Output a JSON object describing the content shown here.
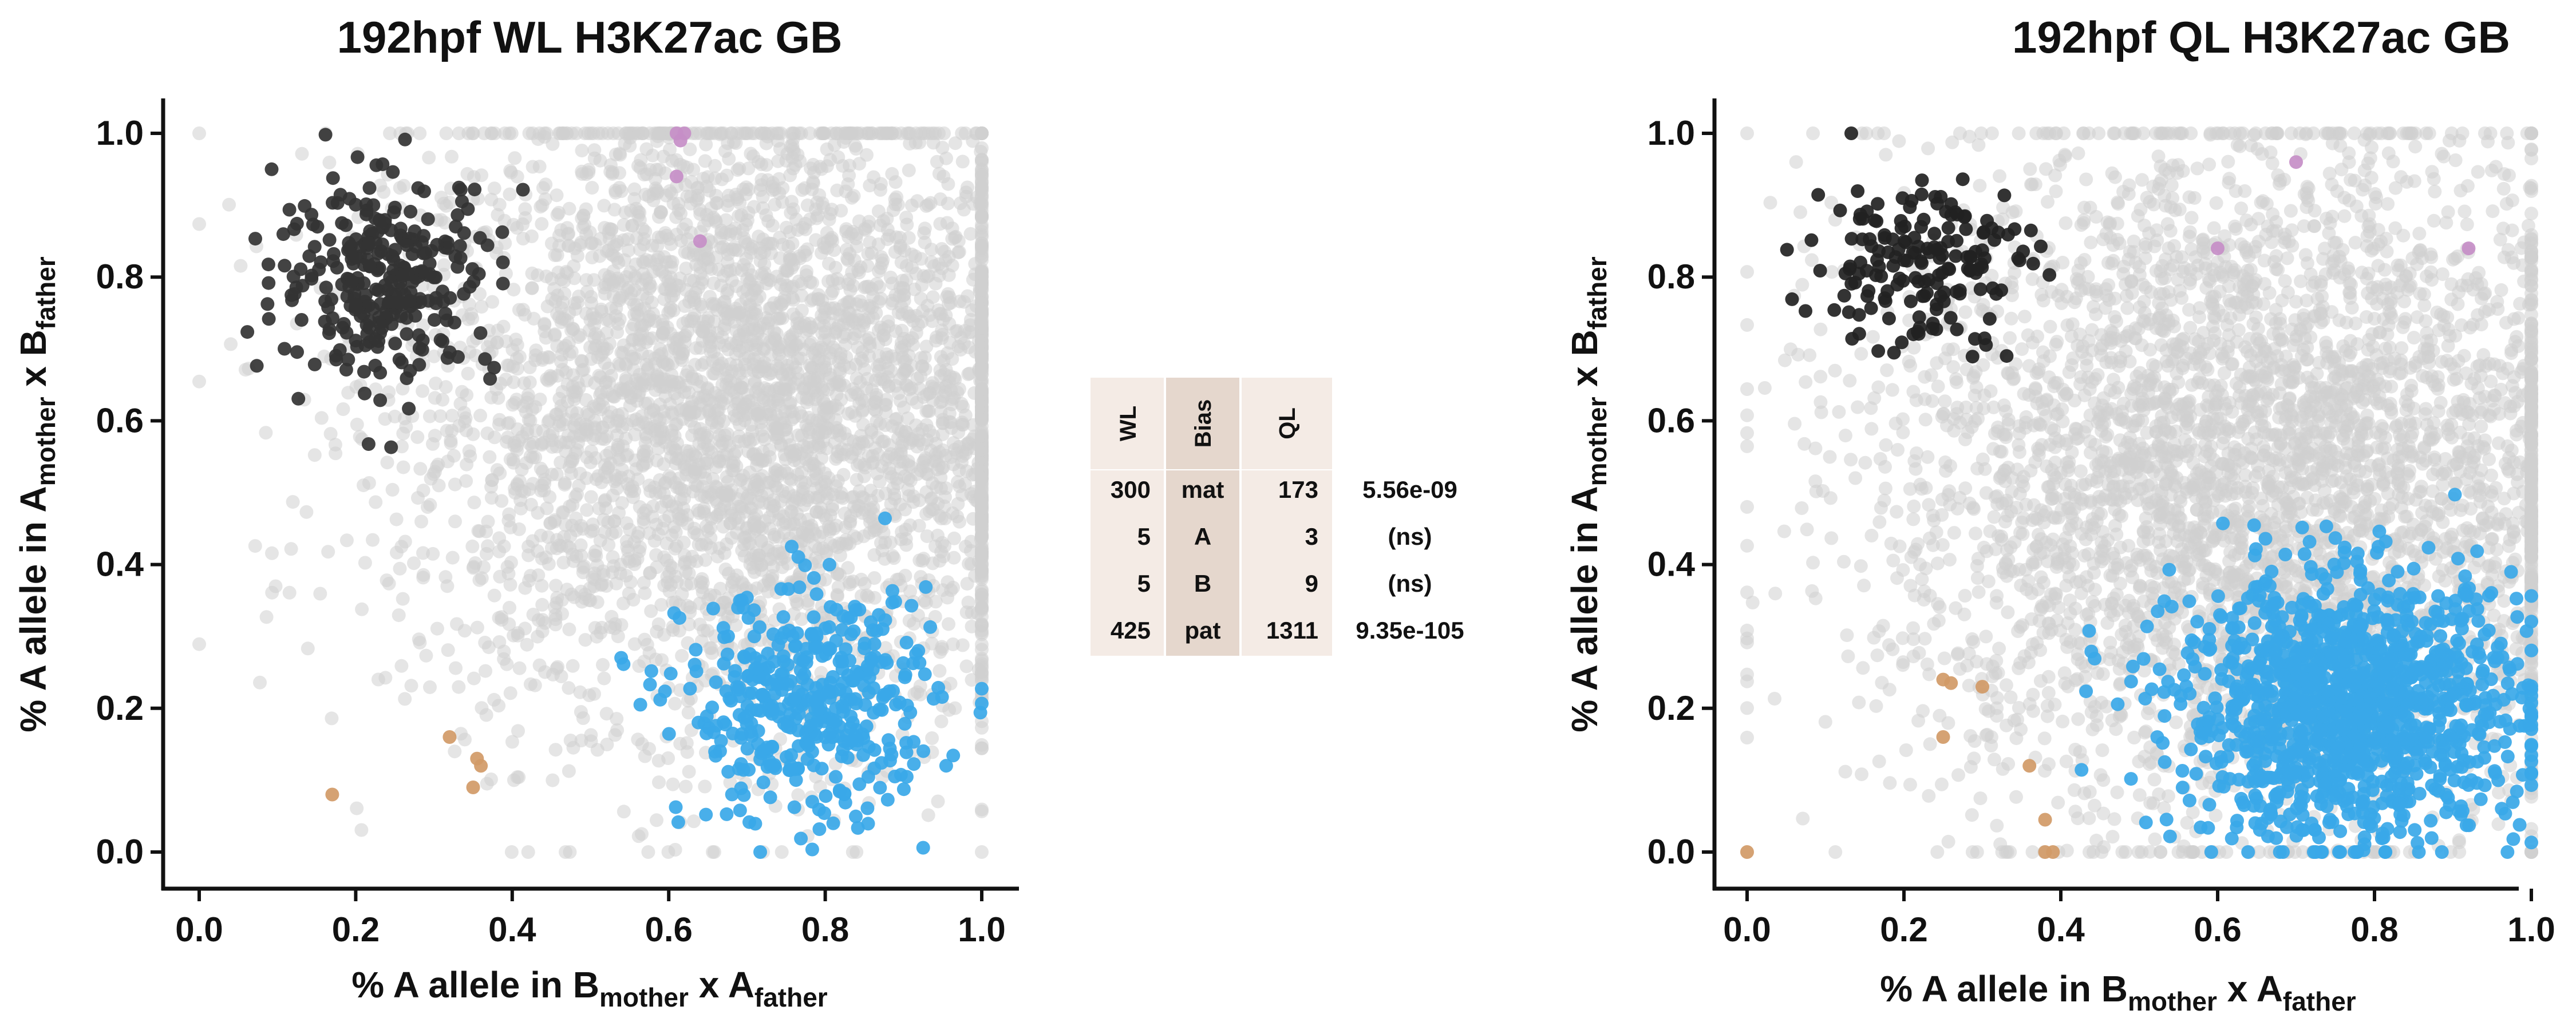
{
  "chart_data": [
    {
      "type": "scatter",
      "title": "192hpf WL H3K27ac GB",
      "xlabel": {
        "prefix": "% A allele in B",
        "sub1": "mother",
        "mid": " x A",
        "sub2": "father"
      },
      "ylabel": {
        "prefix": "% A allele in A",
        "sub1": "mother",
        "mid": " x B",
        "sub2": "father"
      },
      "xlim": [
        -0.05,
        1.05
      ],
      "ylim": [
        -0.05,
        1.05
      ],
      "xticks": [
        "0.0",
        "0.2",
        "0.4",
        "0.6",
        "0.8",
        "1.0"
      ],
      "yticks": [
        "0.0",
        "0.2",
        "0.4",
        "0.6",
        "0.8",
        "1.0"
      ],
      "grid": false,
      "series": [
        {
          "name": "background",
          "color": "#d0d0d0",
          "center": [
            0.7,
            0.62
          ],
          "spread": [
            0.22,
            0.22
          ],
          "n": 4200
        },
        {
          "name": "mat",
          "color": "#333333",
          "center": [
            0.24,
            0.8
          ],
          "spread": [
            0.07,
            0.07
          ],
          "n": 300
        },
        {
          "name": "pat",
          "color": "#3aa8e8",
          "center": [
            0.78,
            0.2
          ],
          "spread": [
            0.08,
            0.08
          ],
          "n": 425
        },
        {
          "name": "A",
          "color": "#c58ec7",
          "points": [
            [
              0.61,
              1.0
            ],
            [
              0.62,
              1.0
            ],
            [
              0.61,
              0.94
            ],
            [
              0.64,
              0.85
            ],
            [
              0.615,
              0.99
            ]
          ]
        },
        {
          "name": "B",
          "color": "#d19a67",
          "points": [
            [
              0.17,
              0.08
            ],
            [
              0.32,
              0.16
            ],
            [
              0.35,
              0.09
            ],
            [
              0.36,
              0.12
            ],
            [
              0.355,
              0.13
            ]
          ]
        }
      ]
    },
    {
      "type": "scatter",
      "title": "192hpf QL H3K27ac GB",
      "xlabel": {
        "prefix": "% A allele in B",
        "sub1": "mother",
        "mid": " x A",
        "sub2": "father"
      },
      "ylabel": {
        "prefix": "% A allele in A",
        "sub1": "mother",
        "mid": " x B",
        "sub2": "father"
      },
      "xlim": [
        -0.05,
        1.05
      ],
      "ylim": [
        -0.05,
        1.05
      ],
      "xticks": [
        "0.0",
        "0.2",
        "0.4",
        "0.6",
        "0.8",
        "1.0"
      ],
      "yticks": [
        "0.0",
        "0.2",
        "0.4",
        "0.6",
        "0.8",
        "1.0"
      ],
      "grid": false,
      "series": [
        {
          "name": "background",
          "color": "#d0d0d0",
          "center": [
            0.65,
            0.52
          ],
          "spread": [
            0.24,
            0.24
          ],
          "n": 4200
        },
        {
          "name": "mat",
          "color": "#222222",
          "center": [
            0.22,
            0.82
          ],
          "spread": [
            0.07,
            0.06
          ],
          "n": 173
        },
        {
          "name": "pat",
          "color": "#3aa8e8",
          "center": [
            0.77,
            0.2
          ],
          "spread": [
            0.11,
            0.09
          ],
          "n": 1311
        },
        {
          "name": "A",
          "color": "#c58ec7",
          "points": [
            [
              0.6,
              0.84
            ],
            [
              0.7,
              0.96
            ],
            [
              0.92,
              0.84
            ]
          ]
        },
        {
          "name": "B",
          "color": "#d19a67",
          "points": [
            [
              0.25,
              0.24
            ],
            [
              0.26,
              0.235
            ],
            [
              0.3,
              0.23
            ],
            [
              0.25,
              0.16
            ],
            [
              0.36,
              0.12
            ],
            [
              0.38,
              0.045
            ],
            [
              0.38,
              0.0
            ],
            [
              0.39,
              0.0
            ],
            [
              0.0,
              0.0
            ]
          ]
        }
      ]
    }
  ],
  "table": {
    "headers": [
      "WL",
      "Bias",
      "QL"
    ],
    "rows": [
      {
        "wl": "300",
        "bias": "mat",
        "bias_color": "#111111",
        "ql": "173",
        "pvalue": "5.56e-09"
      },
      {
        "wl": "5",
        "bias": "A",
        "bias_color": "#c58ec7",
        "ql": "3",
        "pvalue": "(ns)"
      },
      {
        "wl": "5",
        "bias": "B",
        "bias_color": "#d19a67",
        "ql": "9",
        "pvalue": "(ns)"
      },
      {
        "wl": "425",
        "bias": "pat",
        "bias_color": "#3aa8e8",
        "ql": "1311",
        "pvalue": "9.35e-105"
      }
    ]
  }
}
